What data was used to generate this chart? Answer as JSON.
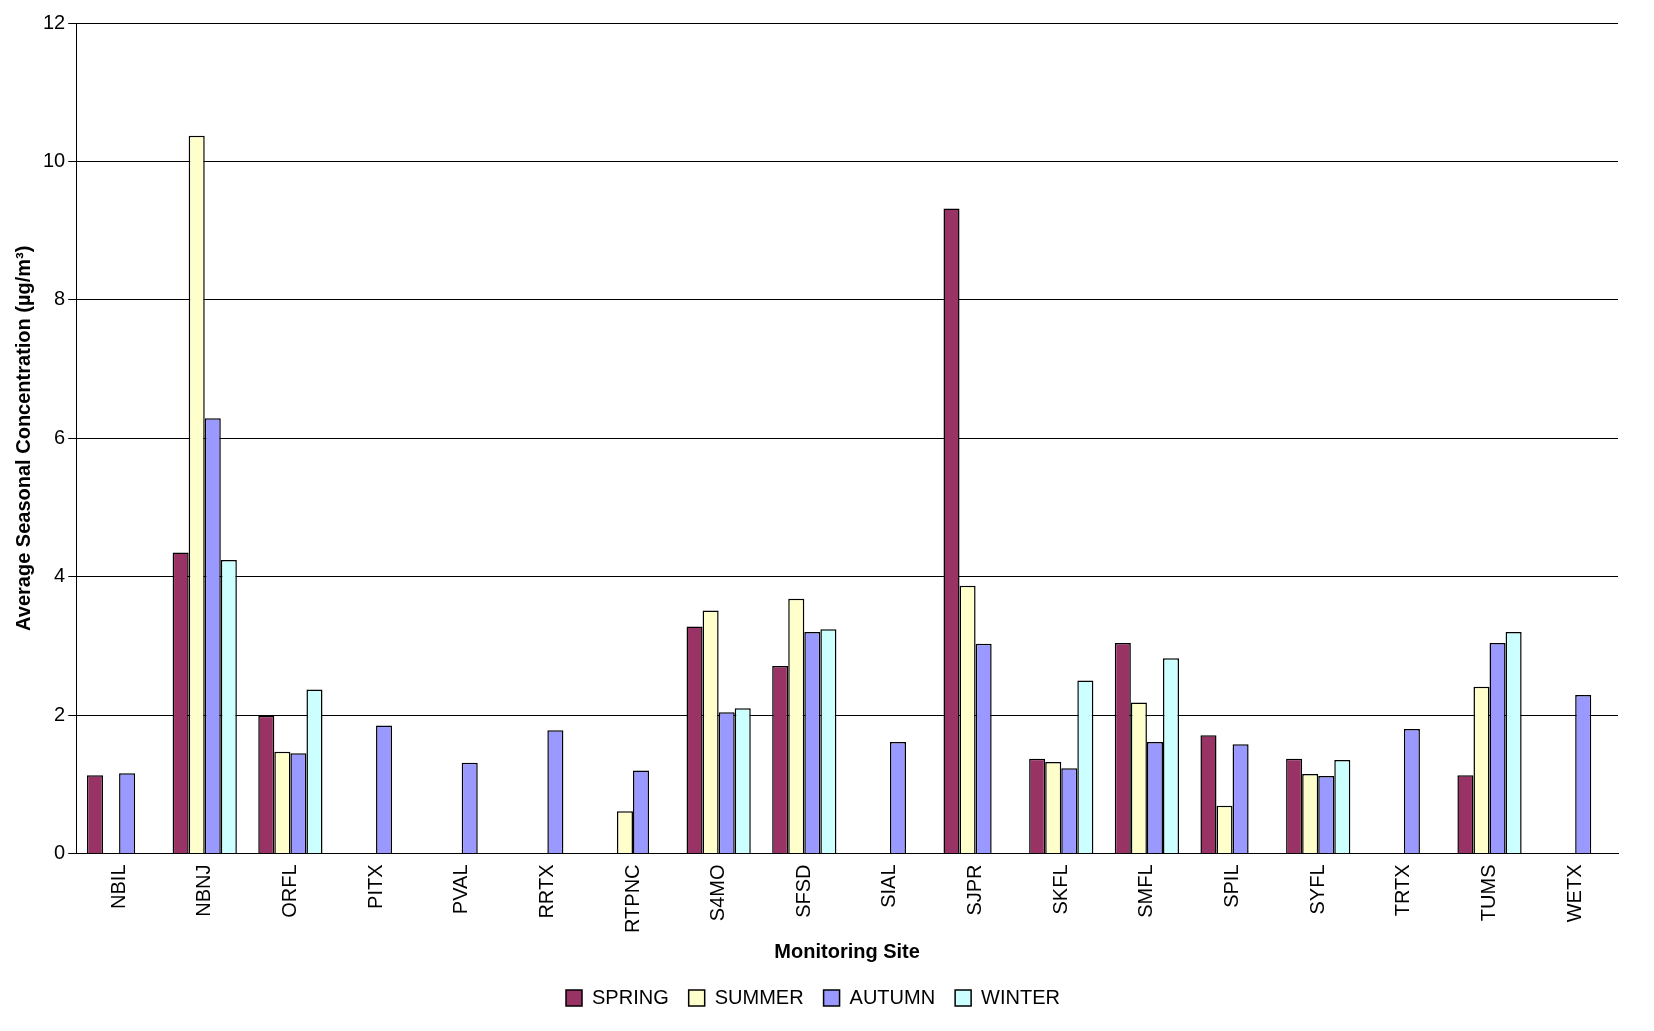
{
  "chart_data": {
    "type": "bar",
    "xlabel": "Monitoring Site",
    "ylabel": "Average Seasonal Concentration (µg/m³)",
    "categories": [
      "NBIL",
      "NBNJ",
      "ORFL",
      "PITX",
      "PVAL",
      "RRTX",
      "RTPNC",
      "S4MO",
      "SFSD",
      "SIAL",
      "SJPR",
      "SKFL",
      "SMFL",
      "SPIL",
      "SYFL",
      "TRTX",
      "TUMS",
      "WETX"
    ],
    "series": [
      {
        "name": "SPRING",
        "color": "#993366",
        "values": [
          1.13,
          4.35,
          1.99,
          null,
          null,
          null,
          null,
          3.28,
          2.71,
          null,
          9.32,
          1.37,
          3.04,
          1.71,
          1.37,
          null,
          1.13,
          null
        ]
      },
      {
        "name": "SUMMER",
        "color": "#ffffcc",
        "values": [
          null,
          10.37,
          1.47,
          null,
          null,
          null,
          0.61,
          3.51,
          3.68,
          null,
          3.87,
          1.32,
          2.18,
          0.69,
          1.15,
          null,
          2.41,
          null
        ]
      },
      {
        "name": "AUTUMN",
        "color": "#9999ff",
        "values": [
          1.16,
          6.29,
          1.45,
          1.85,
          1.31,
          1.78,
          1.2,
          2.04,
          3.2,
          1.61,
          3.03,
          1.23,
          1.61,
          1.58,
          1.12,
          1.8,
          3.04,
          2.29
        ]
      },
      {
        "name": "WINTER",
        "color": "#ccffff",
        "values": [
          null,
          4.24,
          2.37,
          null,
          null,
          null,
          null,
          2.1,
          3.24,
          null,
          null,
          2.5,
          2.82,
          null,
          1.35,
          null,
          3.2,
          null
        ]
      }
    ],
    "ylim": [
      0,
      12
    ],
    "yticks": [
      0,
      2,
      4,
      6,
      8,
      10,
      12
    ],
    "grid": "y",
    "legend": "bottom"
  }
}
